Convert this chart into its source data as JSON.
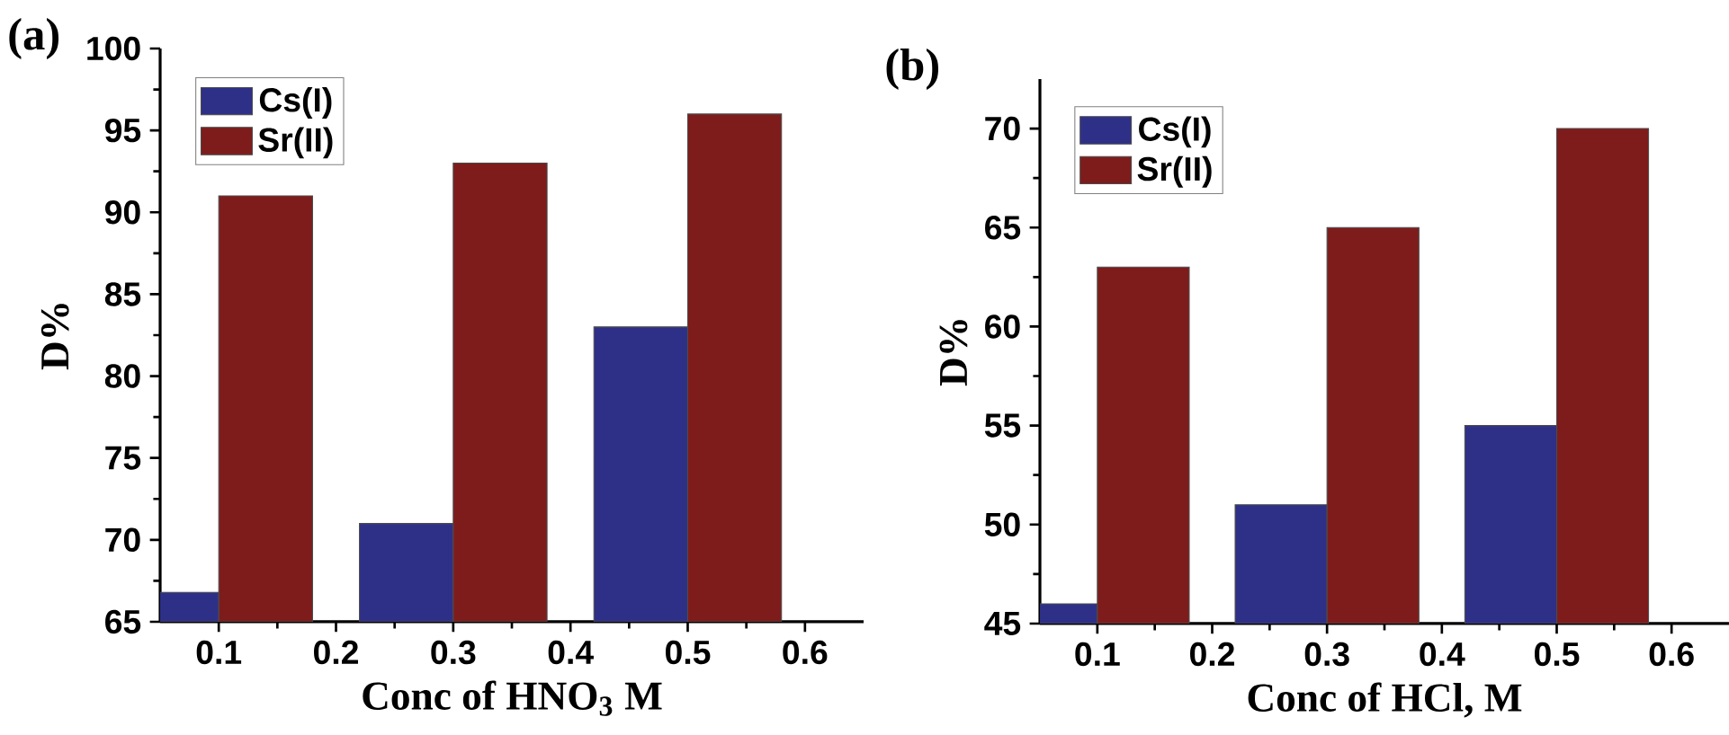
{
  "chart_data": [
    {
      "type": "bar",
      "title": "(a)",
      "xlabel": "Conc of HNO$_{3}$ M",
      "ylabel": "D%",
      "x": [
        0.1,
        0.3,
        0.5
      ],
      "series": [
        {
          "name": "Cs(I)",
          "color": "#2e3088",
          "values": [
            66.8,
            71,
            83
          ]
        },
        {
          "name": "Sr(II)",
          "color": "#7e1c1c",
          "values": [
            91,
            93,
            96
          ]
        }
      ],
      "xlim": [
        0.05,
        0.65
      ],
      "xticks": [
        0.1,
        0.2,
        0.3,
        0.4,
        0.5,
        0.6
      ],
      "ylim": [
        65,
        100
      ],
      "yticks": [
        65,
        70,
        75,
        80,
        85,
        90,
        95,
        100
      ],
      "legend": "top left",
      "grid": false
    },
    {
      "type": "bar",
      "title": "(b)",
      "xlabel": "Conc of HCl, M",
      "ylabel": "D%",
      "x": [
        0.1,
        0.3,
        0.5
      ],
      "series": [
        {
          "name": "Cs(I)",
          "color": "#2e3088",
          "values": [
            46,
            51,
            55
          ]
        },
        {
          "name": "Sr(II)",
          "color": "#7e1c1c",
          "values": [
            63,
            65,
            70
          ]
        }
      ],
      "xlim": [
        0.05,
        0.65
      ],
      "xticks": [
        0.1,
        0.2,
        0.3,
        0.4,
        0.5,
        0.6
      ],
      "ylim": [
        45,
        72.5
      ],
      "yticks": [
        45,
        50,
        55,
        60,
        65,
        70
      ],
      "legend": "top left",
      "grid": false
    }
  ]
}
